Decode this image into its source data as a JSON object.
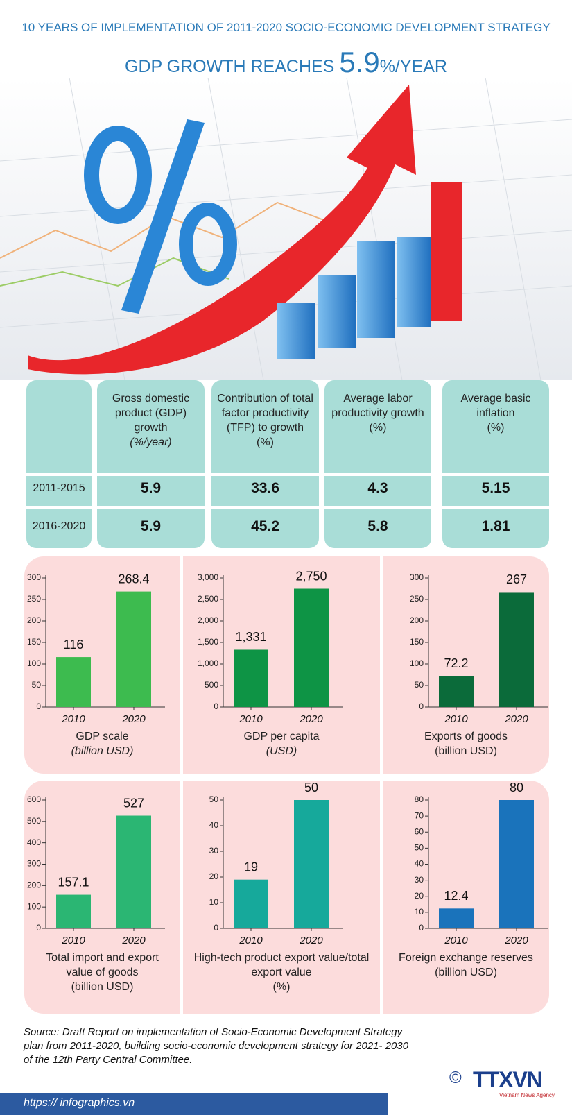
{
  "header": {
    "subtitle": "10 YEARS OF IMPLEMENTATION OF 2011-2020 SOCIO-ECONOMIC DEVELOPMENT STRATEGY",
    "title_prefix": "GDP GROWTH REACHES",
    "title_value": "5.9",
    "title_suffix": "%/YEAR"
  },
  "table": {
    "columns": [
      {
        "label": "Gross domestic product (GDP) growth",
        "unit": "(%/year)"
      },
      {
        "label": "Contribution of total factor productivity (TFP) to growth",
        "unit": "(%)"
      },
      {
        "label": "Average labor productivity growth",
        "unit": "(%)"
      },
      {
        "label": "Average basic inflation",
        "unit": "(%)"
      }
    ],
    "rows": [
      {
        "period": "2011-2015",
        "values": [
          5.9,
          33.6,
          4.3,
          5.15
        ]
      },
      {
        "period": "2016-2020",
        "values": [
          5.9,
          45.2,
          5.8,
          1.81
        ]
      }
    ]
  },
  "chart_data": [
    {
      "type": "bar",
      "title": "GDP scale",
      "unit": "(billion USD)",
      "categories": [
        "2010",
        "2020"
      ],
      "values": [
        116,
        268.4
      ],
      "color": "#3dbb4f",
      "ylim": [
        0,
        300
      ],
      "yticks": [
        0,
        50,
        100,
        150,
        200,
        250,
        300
      ]
    },
    {
      "type": "bar",
      "title": "GDP per capita",
      "unit": "(USD)",
      "categories": [
        "2010",
        "2020"
      ],
      "values": [
        1331,
        2750
      ],
      "value_labels": [
        "1,331",
        "2,750"
      ],
      "color": "#0e9445",
      "ylim": [
        0,
        3000
      ],
      "yticks": [
        0,
        500,
        {
          "value": 1000,
          "label": "1,000"
        },
        {
          "value": 1500,
          "label": "1,500"
        },
        {
          "value": 2000,
          "label": "2,000"
        },
        {
          "value": 2500,
          "label": "2,500"
        },
        {
          "value": 3000,
          "label": "3,000"
        }
      ]
    },
    {
      "type": "bar",
      "title": "Exports of goods",
      "unit": "(billion USD)",
      "categories": [
        "2010",
        "2020"
      ],
      "values": [
        72.2,
        267
      ],
      "color": "#0b6b3a",
      "ylim": [
        0,
        300
      ],
      "yticks": [
        0,
        50,
        100,
        150,
        200,
        250,
        300
      ]
    },
    {
      "type": "bar",
      "title": "Total import and export value of goods",
      "unit": "(billion USD)",
      "categories": [
        "2010",
        "2020"
      ],
      "values": [
        157.1,
        527
      ],
      "color": "#2bb673",
      "ylim": [
        0,
        600
      ],
      "yticks": [
        0,
        100,
        200,
        300,
        400,
        500,
        600
      ]
    },
    {
      "type": "bar",
      "title": "High-tech product export value/total export value",
      "unit": "(%)",
      "categories": [
        "2010",
        "2020"
      ],
      "values": [
        19,
        50
      ],
      "color": "#16a99b",
      "ylim": [
        0,
        50
      ],
      "yticks": [
        0,
        10,
        20,
        30,
        40,
        50
      ]
    },
    {
      "type": "bar",
      "title": "Foreign exchange reserves",
      "unit": "(billion USD)",
      "categories": [
        "2010",
        "2020"
      ],
      "values": [
        12.4,
        80
      ],
      "color": "#1a73bb",
      "ylim": [
        0,
        80
      ],
      "yticks": [
        0,
        10,
        20,
        30,
        40,
        50,
        60,
        70,
        80
      ]
    }
  ],
  "footer": {
    "source": "Source: Draft Report on implementation of Socio-Economic Development Strategy plan from 2011-2020, building socio-economic development strategy for 2021- 2030 of the 12th Party Central Committee.",
    "url": "https:// infographics.vn",
    "copyright": "©",
    "logo": "TTXVN",
    "logo_sub": "Vietnam News Agency"
  }
}
